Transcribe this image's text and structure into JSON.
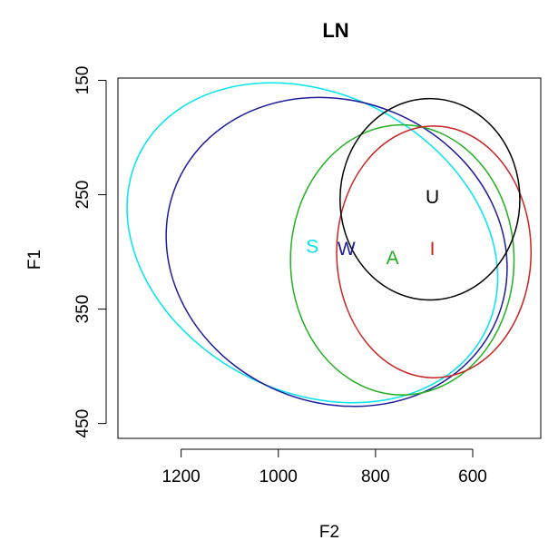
{
  "chart_data": {
    "type": "scatter",
    "title": "LN",
    "xlabel": "F2",
    "ylabel": "F1",
    "x_reversed": true,
    "y_reversed": true,
    "xlim": [
      1330,
      460
    ],
    "ylim": [
      148,
      463
    ],
    "x_ticks": [
      "1200",
      "1000",
      "800",
      "600"
    ],
    "x_tick_values": [
      1200,
      1000,
      800,
      600
    ],
    "y_ticks": [
      "150",
      "250",
      "350",
      "450"
    ],
    "y_tick_values": [
      150,
      250,
      350,
      450
    ],
    "series": [
      {
        "name": "S",
        "color": "#00e5ee",
        "centroid": {
          "x": 930,
          "y": 295
        },
        "ellipse": {
          "cx": 930,
          "cy": 292,
          "rx": 400,
          "ry": 130,
          "angle": 28
        }
      },
      {
        "name": "W",
        "color": "#1c1c9c",
        "centroid": {
          "x": 860,
          "y": 297
        },
        "ellipse": {
          "cx": 880,
          "cy": 300,
          "rx": 310,
          "ry": 152,
          "angle": -67
        }
      },
      {
        "name": "A",
        "color": "#22b022",
        "centroid": {
          "x": 765,
          "y": 305
        },
        "ellipse": {
          "cx": 745,
          "cy": 307,
          "rx": 230,
          "ry": 118,
          "angle": 0
        }
      },
      {
        "name": "I",
        "color": "#cc2222",
        "centroid": {
          "x": 683,
          "y": 297
        },
        "ellipse": {
          "cx": 680,
          "cy": 300,
          "rx": 200,
          "ry": 110,
          "angle": 0
        }
      },
      {
        "name": "U",
        "color": "#000000",
        "centroid": {
          "x": 683,
          "y": 252
        },
        "ellipse": {
          "cx": 688,
          "cy": 254,
          "rx": 185,
          "ry": 88,
          "angle": 0
        }
      }
    ]
  }
}
